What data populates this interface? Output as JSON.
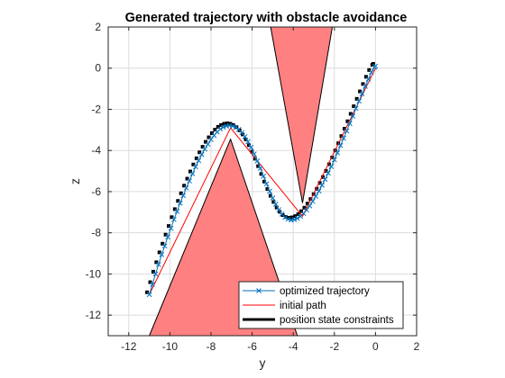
{
  "chart_data": {
    "type": "line",
    "title": "Generated trajectory with obstacle avoidance",
    "xlabel": "y",
    "ylabel": "z",
    "xlim": [
      -13,
      2
    ],
    "ylim": [
      -13,
      2
    ],
    "xticks": [
      -12,
      -10,
      -8,
      -6,
      -4,
      -2,
      0,
      2
    ],
    "yticks": [
      -12,
      -10,
      -8,
      -6,
      -4,
      -2,
      0,
      2
    ],
    "grid": true,
    "legend_position": "bottom-right",
    "obstacles": [
      {
        "color": "#ff8080",
        "edge": "#000000",
        "points": [
          [
            -11,
            -13
          ],
          [
            -7.05,
            -3.45
          ],
          [
            -3.8,
            -13
          ]
        ]
      },
      {
        "color": "#ff8080",
        "edge": "#000000",
        "points": [
          [
            -5.1,
            2
          ],
          [
            -2.1,
            2
          ],
          [
            -3.55,
            -6.55
          ]
        ]
      }
    ],
    "series": [
      {
        "name": "optimized trajectory",
        "color": "#0072bd",
        "marker": "x",
        "x": [
          -11,
          -10.85,
          -10.7,
          -10.55,
          -10.4,
          -10.25,
          -10.1,
          -9.95,
          -9.8,
          -9.65,
          -9.5,
          -9.35,
          -9.2,
          -9.05,
          -8.9,
          -8.75,
          -8.6,
          -8.45,
          -8.3,
          -8.15,
          -8.0,
          -7.85,
          -7.7,
          -7.55,
          -7.4,
          -7.25,
          -7.1,
          -6.95,
          -6.8,
          -6.65,
          -6.5,
          -6.35,
          -6.2,
          -6.05,
          -5.9,
          -5.75,
          -5.6,
          -5.45,
          -5.3,
          -5.15,
          -5.0,
          -4.85,
          -4.7,
          -4.55,
          -4.4,
          -4.25,
          -4.1,
          -3.95,
          -3.8,
          -3.65,
          -3.5,
          -3.35,
          -3.2,
          -3.05,
          -2.9,
          -2.75,
          -2.6,
          -2.45,
          -2.3,
          -2.15,
          -2.0,
          -1.85,
          -1.7,
          -1.55,
          -1.4,
          -1.25,
          -1.1,
          -0.95,
          -0.8,
          -0.65,
          -0.5,
          -0.35,
          -0.2,
          -0.05,
          0
        ],
        "y": [
          -11,
          -10.51,
          -10.0,
          -9.54,
          -9.06,
          -8.64,
          -8.2,
          -7.78,
          -7.35,
          -6.96,
          -6.56,
          -6.19,
          -5.82,
          -5.48,
          -5.13,
          -4.79,
          -4.49,
          -4.2,
          -3.93,
          -3.69,
          -3.47,
          -3.27,
          -3.1,
          -2.96,
          -2.87,
          -2.81,
          -2.79,
          -2.81,
          -2.87,
          -2.98,
          -3.13,
          -3.33,
          -3.57,
          -3.85,
          -4.17,
          -4.51,
          -4.87,
          -5.25,
          -5.62,
          -5.98,
          -6.31,
          -6.61,
          -6.88,
          -7.09,
          -7.25,
          -7.34,
          -7.38,
          -7.36,
          -7.3,
          -7.2,
          -7.06,
          -6.89,
          -6.69,
          -6.47,
          -6.23,
          -5.97,
          -5.69,
          -5.4,
          -5.1,
          -4.78,
          -4.45,
          -4.11,
          -3.76,
          -3.41,
          -3.05,
          -2.69,
          -2.33,
          -1.96,
          -1.6,
          -1.24,
          -0.88,
          -0.53,
          -0.2,
          0.05,
          0.1
        ]
      },
      {
        "name": "initial path",
        "color": "#ff0000",
        "x": [
          -11,
          -7.05,
          -3.55,
          0
        ],
        "y": [
          -11,
          -2.9,
          -7.2,
          0
        ]
      },
      {
        "name": "position state constraints",
        "color": "#000000"
      }
    ]
  }
}
